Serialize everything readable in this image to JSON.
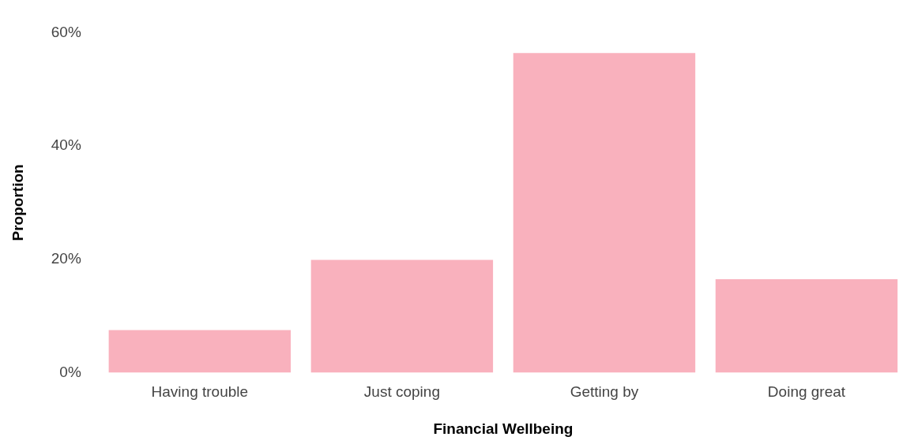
{
  "chart_data": {
    "type": "bar",
    "xlabel": "Financial Wellbeing",
    "ylabel": "Proportion",
    "categories": [
      "Having trouble",
      "Just coping",
      "Getting by",
      "Doing great"
    ],
    "values": [
      7.5,
      19.9,
      56.4,
      16.5
    ],
    "color": "#f9b1bd",
    "ylim": [
      0,
      60
    ],
    "yticks": [
      {
        "value": 0,
        "label": "0%"
      },
      {
        "value": 20,
        "label": "20%"
      },
      {
        "value": 40,
        "label": "40%"
      },
      {
        "value": 60,
        "label": "60%"
      }
    ],
    "grid": false
  }
}
